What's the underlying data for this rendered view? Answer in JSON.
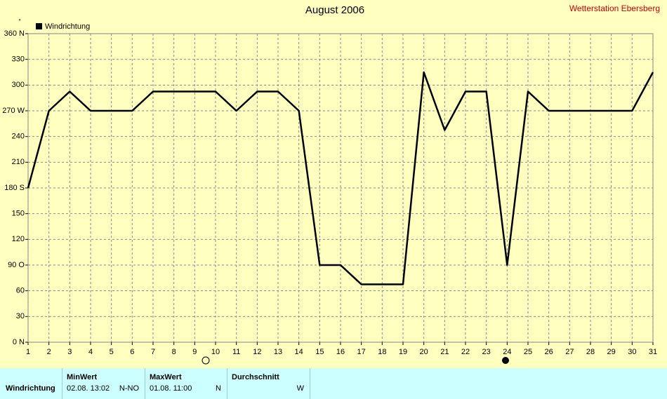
{
  "chart_data": {
    "type": "line",
    "title": "August 2006",
    "station": "Wetterstation Ebersberg",
    "y_label": "°",
    "x": [
      1,
      2,
      3,
      4,
      5,
      6,
      7,
      8,
      9,
      10,
      11,
      12,
      13,
      14,
      15,
      16,
      17,
      18,
      19,
      20,
      21,
      22,
      23,
      24,
      25,
      26,
      27,
      28,
      29,
      30,
      31
    ],
    "series": [
      {
        "name": "Windrichtung",
        "color": "#000000",
        "values": [
          180,
          270,
          292.5,
          270,
          270,
          270,
          292.5,
          292.5,
          292.5,
          292.5,
          270,
          292.5,
          292.5,
          270,
          90,
          90,
          67.5,
          67.5,
          67.5,
          315,
          247.5,
          292.5,
          292.5,
          90,
          292.5,
          270,
          270,
          270,
          270,
          270,
          315
        ]
      }
    ],
    "xlim": [
      1,
      31
    ],
    "xticks": [
      1,
      2,
      3,
      4,
      5,
      6,
      7,
      8,
      9,
      10,
      11,
      12,
      13,
      14,
      15,
      16,
      17,
      18,
      19,
      20,
      21,
      22,
      23,
      24,
      25,
      26,
      27,
      28,
      29,
      30,
      31
    ],
    "ylim": [
      0,
      360
    ],
    "yticks": [
      {
        "value": 0,
        "label": "0  N"
      },
      30,
      60,
      {
        "value": 90,
        "label": "90  O"
      },
      120,
      150,
      {
        "value": 180,
        "label": "180 S"
      },
      210,
      240,
      {
        "value": 270,
        "label": "270 W"
      },
      300,
      330,
      {
        "value": 360,
        "label": "360 N"
      }
    ],
    "grid": true,
    "legend": "top-left"
  },
  "table": {
    "headers": [
      "MinWert",
      "MaxWert",
      "Durchschnitt"
    ],
    "row_label": "Windrichtung",
    "min_time": "02.08.  13:02",
    "min_dir": "N-NO",
    "max_time": "01.08.  11:00",
    "max_dir": "N",
    "avg_dir": "W"
  }
}
